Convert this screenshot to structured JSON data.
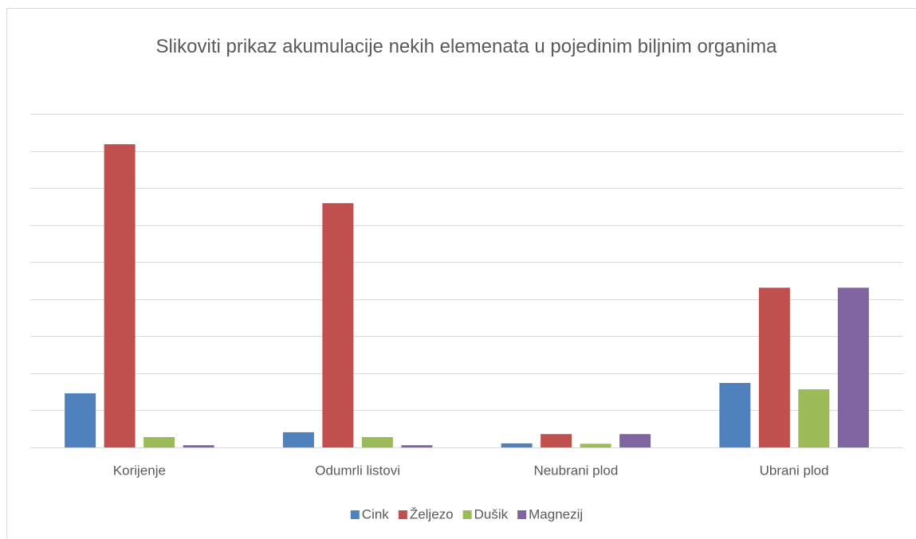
{
  "chart_data": {
    "type": "bar",
    "title": "Slikoviti prikaz akumulacije nekih elemenata u pojedinim biljnim organima",
    "categories": [
      "Korijenje",
      "Odumrli listovi",
      "Neubrani plod",
      "Ubrani plod"
    ],
    "series": [
      {
        "name": "Cink",
        "color": "#4f81bd",
        "values": [
          1.46,
          0.41,
          0.11,
          1.74
        ]
      },
      {
        "name": "Željezo",
        "color": "#c0504d",
        "values": [
          8.18,
          6.59,
          0.36,
          4.31
        ]
      },
      {
        "name": "Dušik",
        "color": "#9bbb59",
        "values": [
          0.28,
          0.28,
          0.1,
          1.57
        ]
      },
      {
        "name": "Magnezij",
        "color": "#8064a2",
        "values": [
          0.06,
          0.06,
          0.36,
          4.31
        ]
      }
    ],
    "ylim": [
      0,
      9
    ],
    "yticks": [
      0,
      1,
      2,
      3,
      4,
      5,
      6,
      7,
      8,
      9
    ],
    "grid": true,
    "legend": "bottom"
  }
}
